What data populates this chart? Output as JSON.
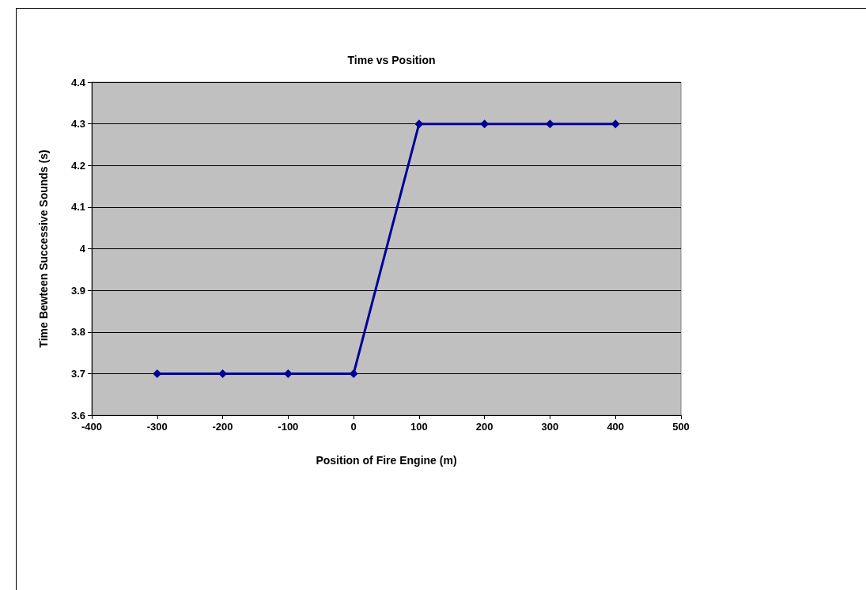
{
  "chart_data": {
    "type": "line",
    "title": "Time vs Position",
    "xlabel": "Position of Fire Engine (m)",
    "ylabel": "Time Bewteen Successive Sounds (s)",
    "x": [
      -300,
      -200,
      -100,
      0,
      100,
      200,
      300,
      400
    ],
    "series": [
      {
        "color": "#000099",
        "values": [
          3.7,
          3.7,
          3.7,
          3.7,
          4.3,
          4.3,
          4.3,
          4.3
        ]
      }
    ],
    "xlim": [
      -400,
      500
    ],
    "xticks": [
      -400,
      -300,
      -200,
      -100,
      0,
      100,
      200,
      300,
      400,
      500
    ],
    "ylim": [
      3.6,
      4.4
    ],
    "yticks": [
      3.6,
      3.7,
      3.8,
      3.9,
      4,
      4.1,
      4.2,
      4.3,
      4.4
    ],
    "grid": "y",
    "marker": "diamond",
    "line_style": "solid"
  }
}
